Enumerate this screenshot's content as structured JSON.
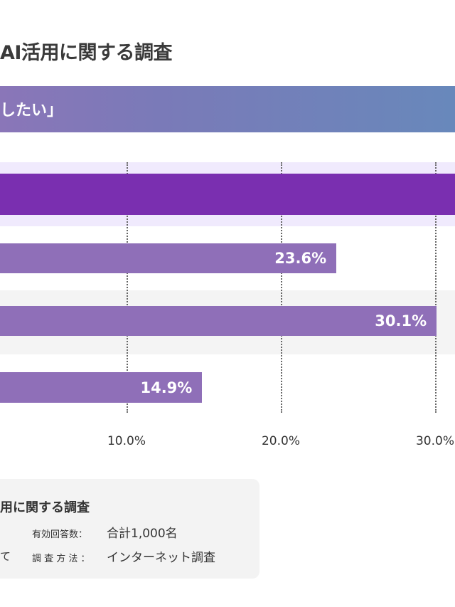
{
  "header": {
    "title": "AI活用に関する調査",
    "banner_text": "したい」"
  },
  "colors": {
    "highlight_bar": "#7a2fb0",
    "bar": "#8f6fb8",
    "highlight_band": "#f0eafd",
    "alt_band": "#f4f4f4"
  },
  "chart_data": {
    "type": "bar",
    "orientation": "horizontal",
    "categories": [
      "",
      "",
      "",
      ""
    ],
    "values": [
      null,
      23.6,
      30.1,
      14.9
    ],
    "data_labels": [
      "",
      "23.6%",
      "30.1%",
      "14.9%"
    ],
    "x_ticks": [
      "10.0%",
      "20.0%",
      "30.0%"
    ],
    "x_tick_values": [
      10,
      20,
      30
    ],
    "grid": "dotted vertical",
    "highlighted_index": 0
  },
  "legend": {
    "title": "用に関する調査",
    "rows": [
      {
        "key": "有効回答数：",
        "value": "合計1,000名"
      },
      {
        "key": "調 査 方 法 ：",
        "value": "インターネット調査"
      }
    ],
    "cut_text": "て"
  }
}
